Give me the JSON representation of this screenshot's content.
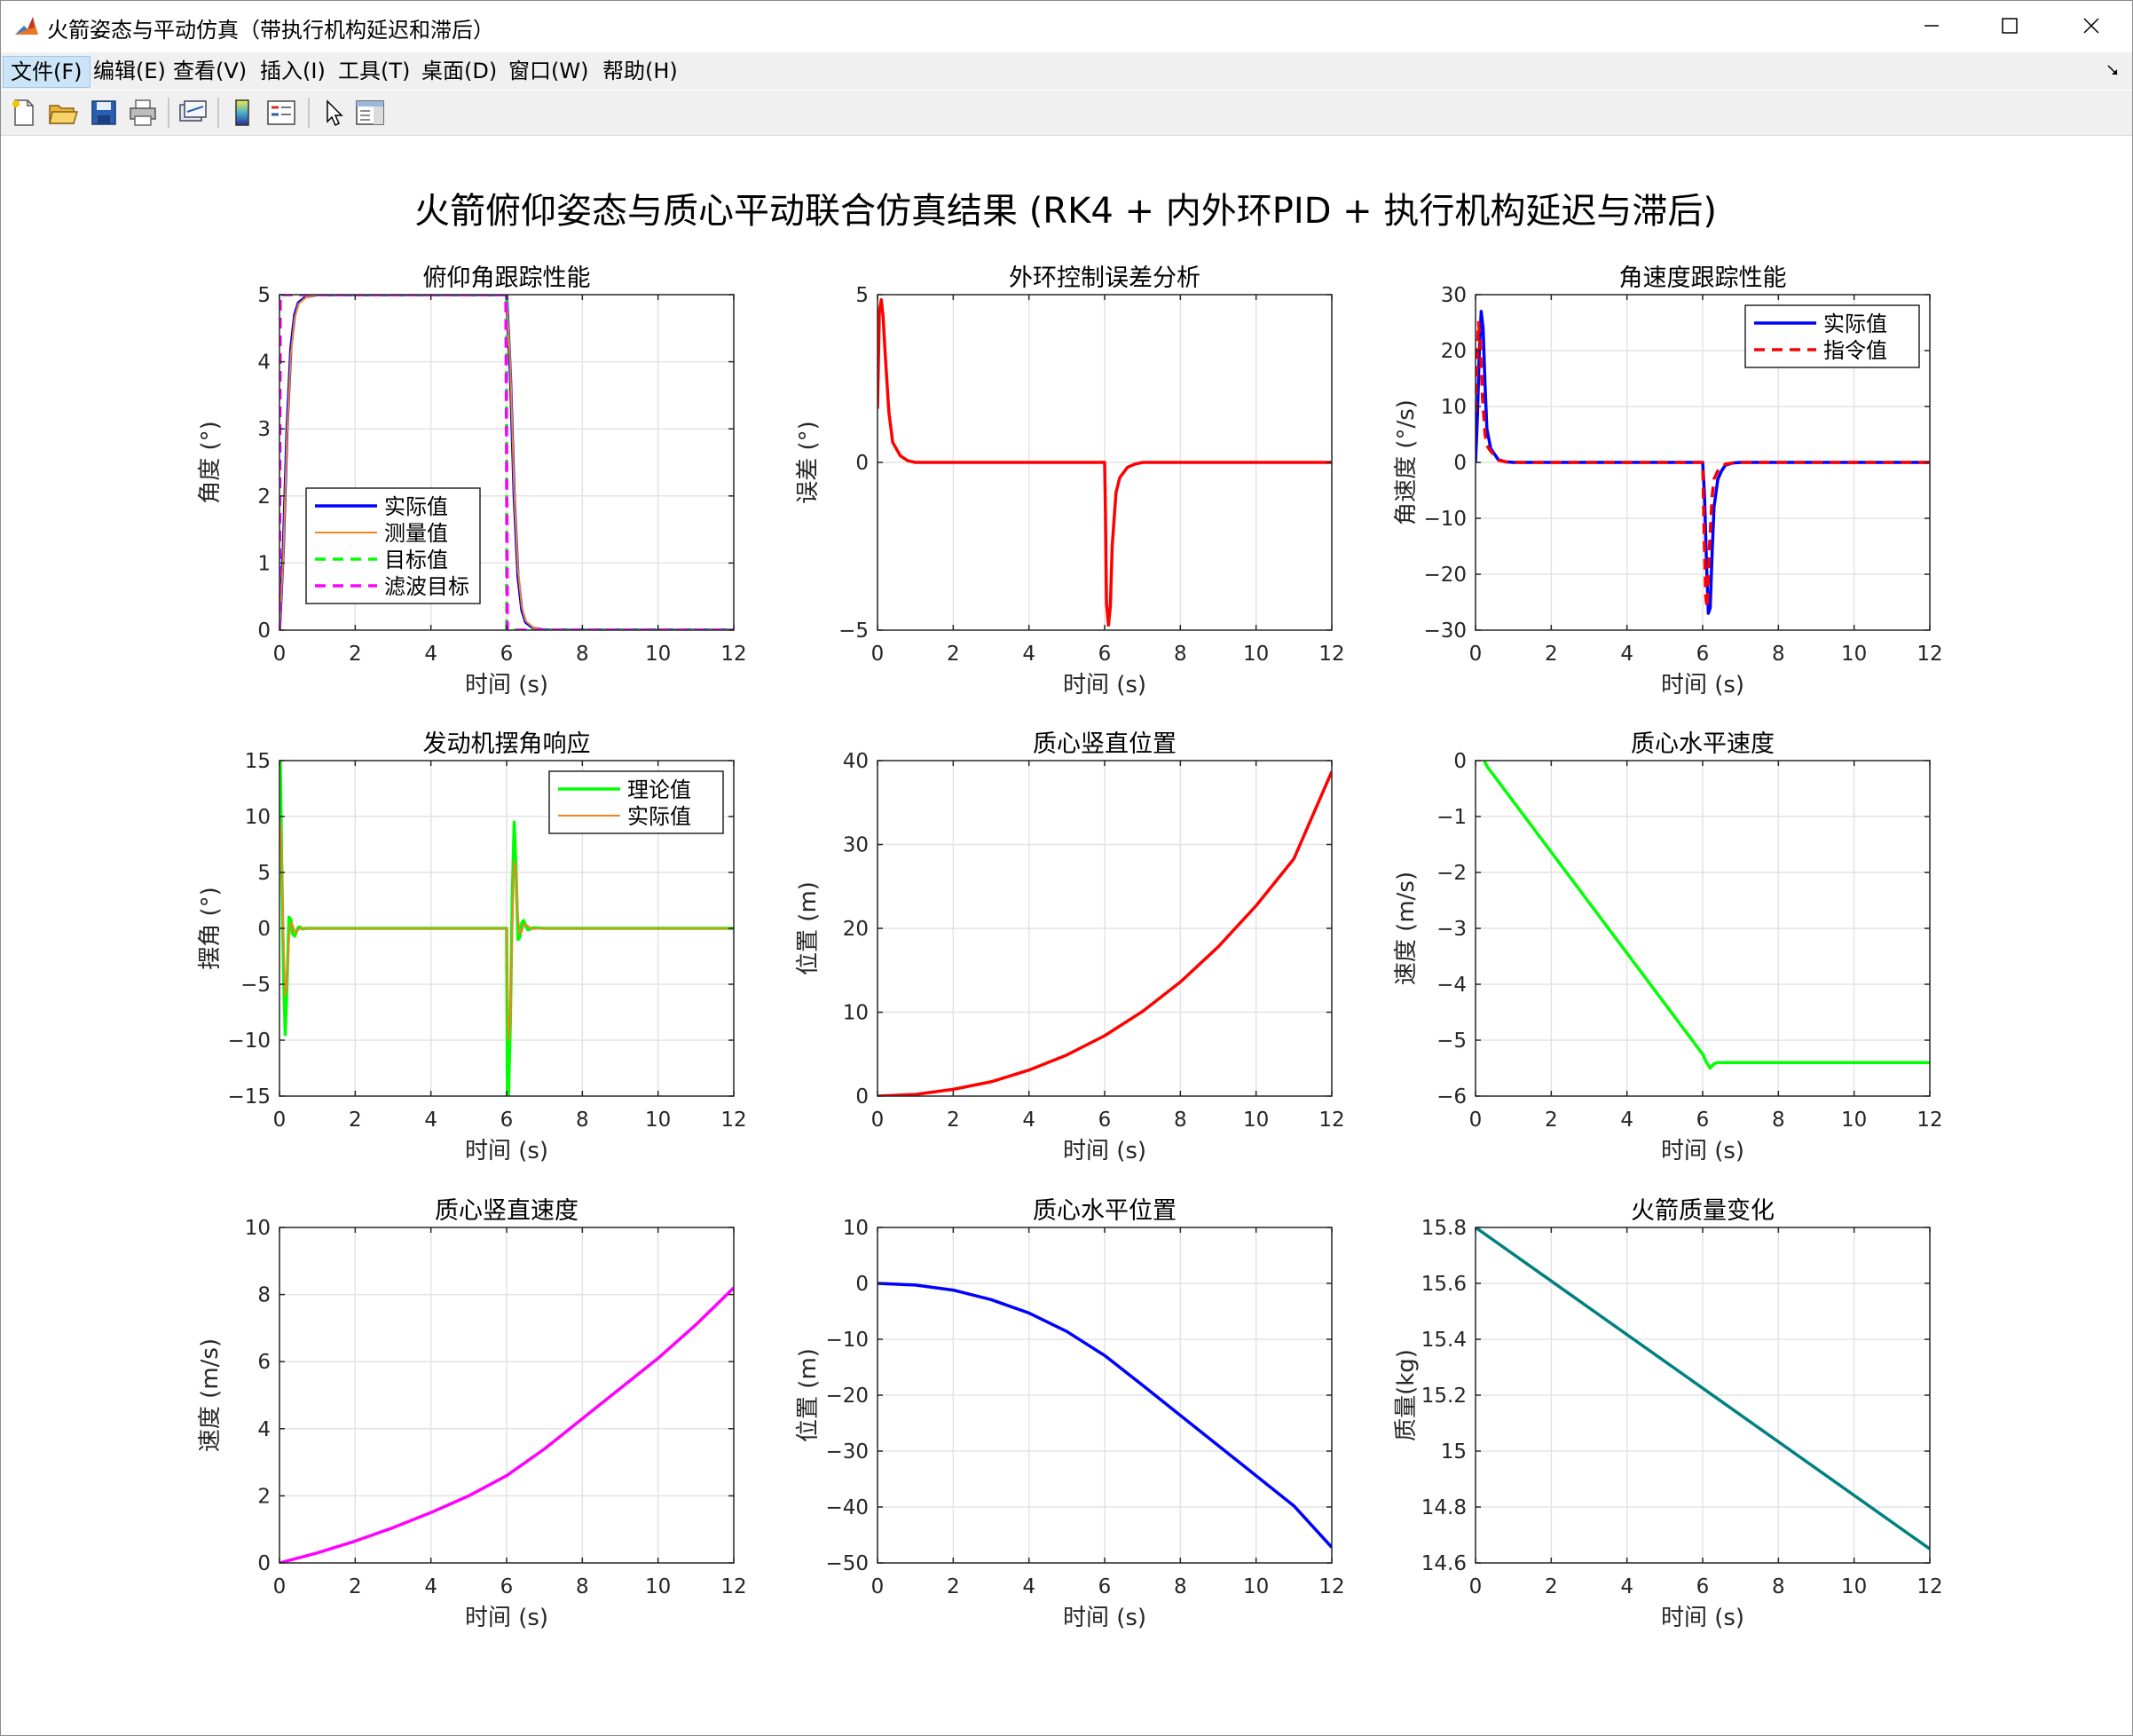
{
  "window": {
    "title": "火箭姿态与平动仿真（带执行机构延迟和滞后）",
    "icon": "matlab-icon",
    "controls": [
      "minimize-icon",
      "maximize-icon",
      "close-icon"
    ]
  },
  "menubar": {
    "items": [
      {
        "label": "文件(F)"
      },
      {
        "label": "编辑(E)"
      },
      {
        "label": "查看(V)"
      },
      {
        "label": "插入(I)"
      },
      {
        "label": "工具(T)"
      },
      {
        "label": "桌面(D)"
      },
      {
        "label": "窗口(W)"
      },
      {
        "label": "帮助(H)"
      }
    ]
  },
  "toolbar": {
    "icons": [
      "new-figure-icon",
      "open-file-icon",
      "save-icon",
      "print-icon",
      "link-plot-icon",
      "colorbar-icon",
      "legend-icon",
      "pointer-icon",
      "property-editor-icon"
    ]
  },
  "figure": {
    "suptitle": "火箭俯仰姿态与质心平动联合仿真结果 (RK4 + 内外环PID + 执行机构延迟与滞后)"
  },
  "chart_data": [
    {
      "type": "line",
      "title": "俯仰角跟踪性能",
      "xlabel": "时间 (s)",
      "ylabel": "角度 (°)",
      "xlim": [
        0,
        12
      ],
      "ylim": [
        0,
        5
      ],
      "xticks": [
        0,
        2,
        4,
        6,
        8,
        10,
        12
      ],
      "yticks": [
        0,
        1,
        2,
        3,
        4,
        5
      ],
      "grid": true,
      "legend_position": "lower-left",
      "series": [
        {
          "name": "实际值",
          "color": "#0000ff",
          "dash": false,
          "width": 3.5,
          "x": [
            0,
            0.1,
            0.2,
            0.3,
            0.4,
            0.5,
            0.7,
            1.0,
            6.0,
            6.1,
            6.2,
            6.3,
            6.4,
            6.5,
            6.7,
            7.0,
            12
          ],
          "y": [
            0,
            1.2,
            3.0,
            4.2,
            4.7,
            4.88,
            4.97,
            5.0,
            5.0,
            3.8,
            2.0,
            0.8,
            0.3,
            0.12,
            0.03,
            0.0,
            0.0
          ]
        },
        {
          "name": "测量值",
          "color": "#f28522",
          "dash": false,
          "width": 2,
          "x": [
            0,
            0.1,
            0.2,
            0.3,
            0.4,
            0.5,
            0.7,
            1.0,
            6.0,
            6.1,
            6.2,
            6.3,
            6.4,
            6.5,
            6.7,
            7.0,
            12
          ],
          "y": [
            0,
            1.1,
            2.9,
            4.1,
            4.65,
            4.86,
            4.96,
            5.0,
            5.0,
            3.9,
            2.1,
            0.9,
            0.35,
            0.14,
            0.04,
            0.0,
            0.0
          ]
        },
        {
          "name": "目标值",
          "color": "#00ff00",
          "dash": true,
          "width": 3.5,
          "x": [
            0,
            0,
            6,
            6,
            12
          ],
          "y": [
            0,
            5,
            5,
            0,
            0
          ]
        },
        {
          "name": "滤波目标",
          "color": "#ff00ff",
          "dash": true,
          "width": 3.5,
          "x": [
            0,
            0.02,
            5.98,
            6.02,
            12
          ],
          "y": [
            0,
            5,
            5,
            0,
            0
          ]
        }
      ]
    },
    {
      "type": "line",
      "title": "外环控制误差分析",
      "xlabel": "时间 (s)",
      "ylabel": "误差 (°)",
      "xlim": [
        0,
        12
      ],
      "ylim": [
        -5,
        5
      ],
      "xticks": [
        0,
        2,
        4,
        6,
        8,
        10,
        12
      ],
      "yticks": [
        -5,
        0,
        5
      ],
      "grid": true,
      "series": [
        {
          "name": "",
          "color": "#ff0000",
          "dash": false,
          "width": 3.5,
          "x": [
            0,
            0.05,
            0.1,
            0.15,
            0.2,
            0.3,
            0.4,
            0.6,
            0.8,
            1.0,
            6.0,
            6.02,
            6.05,
            6.1,
            6.15,
            6.2,
            6.3,
            6.4,
            6.6,
            6.8,
            7.0,
            12
          ],
          "y": [
            1.6,
            4.5,
            4.85,
            4.3,
            3.3,
            1.5,
            0.6,
            0.2,
            0.05,
            0.0,
            0.0,
            -1.5,
            -4.2,
            -4.85,
            -4.3,
            -2.5,
            -0.9,
            -0.45,
            -0.15,
            -0.05,
            0.0,
            0.0
          ]
        }
      ]
    },
    {
      "type": "line",
      "title": "角速度跟踪性能",
      "xlabel": "时间 (s)",
      "ylabel": "角速度 (°/s)",
      "xlim": [
        0,
        12
      ],
      "ylim": [
        -30,
        30
      ],
      "xticks": [
        0,
        2,
        4,
        6,
        8,
        10,
        12
      ],
      "yticks": [
        -30,
        -20,
        -10,
        0,
        10,
        20,
        30
      ],
      "grid": true,
      "legend_position": "top-right",
      "series": [
        {
          "name": "实际值",
          "color": "#0000ff",
          "dash": false,
          "width": 3.5,
          "x": [
            0,
            0.05,
            0.1,
            0.15,
            0.2,
            0.25,
            0.3,
            0.4,
            0.5,
            0.6,
            0.8,
            1.0,
            6.0,
            6.05,
            6.1,
            6.15,
            6.2,
            6.25,
            6.3,
            6.4,
            6.5,
            6.6,
            6.8,
            7.0,
            12
          ],
          "y": [
            0,
            8,
            20,
            27,
            24,
            14,
            6,
            2.5,
            1.5,
            0.5,
            0.1,
            0,
            0,
            -6,
            -18,
            -27,
            -26,
            -16,
            -8,
            -3,
            -1.5,
            -0.5,
            -0.1,
            0,
            0
          ]
        },
        {
          "name": "指令值",
          "color": "#ff0000",
          "dash": true,
          "width": 3.5,
          "x": [
            0,
            0.03,
            0.08,
            0.12,
            0.18,
            0.25,
            0.3,
            0.4,
            0.5,
            0.6,
            0.8,
            1.0,
            6.0,
            6.03,
            6.08,
            6.12,
            6.18,
            6.25,
            6.3,
            6.4,
            6.5,
            6.6,
            6.8,
            7.0,
            12
          ],
          "y": [
            9,
            16,
            25,
            22,
            12,
            5,
            3,
            2,
            1.2,
            0.4,
            0.1,
            0,
            0,
            -10,
            -24,
            -26,
            -15,
            -6,
            -3,
            -1.5,
            -0.8,
            -0.3,
            -0.1,
            0,
            0
          ]
        }
      ]
    },
    {
      "type": "line",
      "title": "发动机摆角响应",
      "xlabel": "时间 (s)",
      "ylabel": "摆角 (°)",
      "xlim": [
        0,
        12
      ],
      "ylim": [
        -15,
        15
      ],
      "xticks": [
        0,
        2,
        4,
        6,
        8,
        10,
        12
      ],
      "yticks": [
        -15,
        -10,
        -5,
        0,
        5,
        10,
        15
      ],
      "grid": true,
      "legend_position": "top-right",
      "series": [
        {
          "name": "理论值",
          "color": "#00ff00",
          "dash": false,
          "width": 3.5,
          "x": [
            0,
            0.02,
            0.05,
            0.1,
            0.15,
            0.2,
            0.25,
            0.3,
            0.35,
            0.4,
            0.45,
            0.5,
            0.55,
            0.6,
            0.7,
            1.0,
            6.0,
            6.02,
            6.05,
            6.1,
            6.15,
            6.2,
            6.25,
            6.3,
            6.35,
            6.4,
            6.45,
            6.5,
            6.55,
            6.6,
            6.7,
            7.0,
            12
          ],
          "y": [
            15,
            15,
            8,
            -3,
            -9.5,
            -5,
            1,
            0.8,
            -0.5,
            -0.7,
            -0.3,
            0.1,
            0.1,
            -0.05,
            0,
            0,
            0,
            -15,
            -15,
            -8,
            3,
            9.5,
            5,
            -1,
            -0.8,
            0.5,
            0.7,
            0.3,
            -0.1,
            -0.1,
            0.05,
            0,
            0
          ]
        },
        {
          "name": "实际值",
          "color": "#f28522",
          "dash": false,
          "width": 2,
          "x": [
            0,
            0.05,
            0.1,
            0.15,
            0.2,
            0.25,
            0.3,
            0.35,
            0.4,
            0.45,
            0.5,
            0.6,
            0.7,
            1.0,
            6.0,
            6.05,
            6.1,
            6.15,
            6.2,
            6.25,
            6.3,
            6.35,
            6.4,
            6.45,
            6.5,
            6.6,
            6.7,
            7.0,
            12
          ],
          "y": [
            10,
            8,
            0,
            -6,
            -5,
            -1,
            0.5,
            0.3,
            -0.3,
            -0.4,
            -0.1,
            0.05,
            0,
            0,
            0,
            -10,
            -8,
            0,
            6,
            5,
            1,
            -0.5,
            -0.3,
            0.3,
            0.4,
            0.1,
            -0.05,
            0,
            0
          ]
        }
      ]
    },
    {
      "type": "line",
      "title": "质心竖直位置",
      "xlabel": "时间 (s)",
      "ylabel": "位置 (m)",
      "xlim": [
        0,
        12
      ],
      "ylim": [
        0,
        40
      ],
      "xticks": [
        0,
        2,
        4,
        6,
        8,
        10,
        12
      ],
      "yticks": [
        0,
        10,
        20,
        30,
        40
      ],
      "grid": true,
      "series": [
        {
          "name": "",
          "color": "#ff0000",
          "dash": false,
          "width": 3.5,
          "x": [
            0,
            1,
            2,
            3,
            4,
            5,
            6,
            7,
            8,
            9,
            10,
            11,
            12
          ],
          "y": [
            0,
            0.2,
            0.8,
            1.7,
            3.1,
            4.9,
            7.2,
            10.1,
            13.6,
            17.8,
            22.7,
            28.3,
            38.7
          ]
        }
      ]
    },
    {
      "type": "line",
      "title": "质心水平速度",
      "xlabel": "时间 (s)",
      "ylabel": "速度 (m/s)",
      "xlim": [
        0,
        12
      ],
      "ylim": [
        -6,
        0
      ],
      "xticks": [
        0,
        2,
        4,
        6,
        8,
        10,
        12
      ],
      "yticks": [
        -6,
        -5,
        -4,
        -3,
        -2,
        -1,
        0
      ],
      "grid": true,
      "series": [
        {
          "name": "",
          "color": "#00ff00",
          "dash": false,
          "width": 3.5,
          "x": [
            0,
            0.1,
            0.2,
            0.3,
            6.0,
            6.1,
            6.2,
            6.3,
            6.4,
            12
          ],
          "y": [
            0.1,
            0.1,
            0.05,
            -0.1,
            -5.25,
            -5.4,
            -5.5,
            -5.42,
            -5.4,
            -5.4
          ]
        }
      ]
    },
    {
      "type": "line",
      "title": "质心竖直速度",
      "xlabel": "时间 (s)",
      "ylabel": "速度 (m/s)",
      "xlim": [
        0,
        12
      ],
      "ylim": [
        0,
        10
      ],
      "xticks": [
        0,
        2,
        4,
        6,
        8,
        10,
        12
      ],
      "yticks": [
        0,
        2,
        4,
        6,
        8,
        10
      ],
      "grid": true,
      "series": [
        {
          "name": "",
          "color": "#ff00ff",
          "dash": false,
          "width": 3.5,
          "x": [
            0,
            1,
            2,
            3,
            4,
            5,
            6,
            7,
            8,
            9,
            10,
            11,
            12
          ],
          "y": [
            0,
            0.3,
            0.65,
            1.05,
            1.5,
            2.0,
            2.6,
            3.4,
            4.3,
            5.2,
            6.1,
            7.1,
            8.2
          ]
        }
      ]
    },
    {
      "type": "line",
      "title": "质心水平位置",
      "xlabel": "时间 (s)",
      "ylabel": "位置 (m)",
      "xlim": [
        0,
        12
      ],
      "ylim": [
        -50,
        10
      ],
      "xticks": [
        0,
        2,
        4,
        6,
        8,
        10,
        12
      ],
      "yticks": [
        -50,
        -40,
        -30,
        -20,
        -10,
        0,
        10
      ],
      "grid": true,
      "series": [
        {
          "name": "",
          "color": "#0000ff",
          "dash": false,
          "width": 3.5,
          "x": [
            0,
            1,
            2,
            3,
            4,
            5,
            6,
            7,
            8,
            9,
            10,
            11,
            12
          ],
          "y": [
            0,
            -0.3,
            -1.2,
            -2.9,
            -5.3,
            -8.6,
            -12.9,
            -18.2,
            -23.6,
            -29.0,
            -34.4,
            -39.8,
            -47.2
          ]
        }
      ]
    },
    {
      "type": "line",
      "title": "火箭质量变化",
      "xlabel": "时间 (s)",
      "ylabel": "质量(kg)",
      "xlim": [
        0,
        12
      ],
      "ylim": [
        14.6,
        15.8
      ],
      "xticks": [
        0,
        2,
        4,
        6,
        8,
        10,
        12
      ],
      "yticks": [
        14.6,
        14.8,
        15,
        15.2,
        15.4,
        15.6,
        15.8
      ],
      "grid": true,
      "series": [
        {
          "name": "",
          "color": "#008080",
          "dash": false,
          "width": 3.5,
          "x": [
            0,
            12
          ],
          "y": [
            15.8,
            14.65
          ]
        }
      ]
    }
  ]
}
